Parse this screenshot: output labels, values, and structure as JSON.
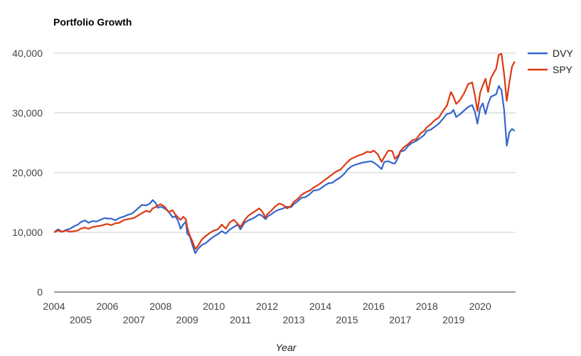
{
  "chart_data": {
    "type": "line",
    "title": "Portfolio Growth",
    "xlabel": "Year",
    "ylabel": "",
    "xlim": [
      2004.0,
      2020.5
    ],
    "ylim": [
      0,
      42000
    ],
    "grid": true,
    "legend_position": "right",
    "y_ticks": [
      {
        "value": 0,
        "label": "0"
      },
      {
        "value": 10000,
        "label": "10,000"
      },
      {
        "value": 20000,
        "label": "20,000"
      },
      {
        "value": 30000,
        "label": "30,000"
      },
      {
        "value": 40000,
        "label": "40,000"
      }
    ],
    "x_ticks": [
      {
        "value": 2004,
        "label": "2004",
        "row": 1
      },
      {
        "value": 2005,
        "label": "2005",
        "row": 2
      },
      {
        "value": 2006,
        "label": "2006",
        "row": 1
      },
      {
        "value": 2007,
        "label": "2007",
        "row": 2
      },
      {
        "value": 2008,
        "label": "2008",
        "row": 1
      },
      {
        "value": 2009,
        "label": "2009",
        "row": 2
      },
      {
        "value": 2010,
        "label": "2010",
        "row": 1
      },
      {
        "value": 2011,
        "label": "2011",
        "row": 2
      },
      {
        "value": 2012,
        "label": "2012",
        "row": 1
      },
      {
        "value": 2013,
        "label": "2013",
        "row": 2
      },
      {
        "value": 2014,
        "label": "2014",
        "row": 1
      },
      {
        "value": 2015,
        "label": "2015",
        "row": 2
      },
      {
        "value": 2016,
        "label": "2016",
        "row": 1
      },
      {
        "value": 2017,
        "label": "2017",
        "row": 2
      },
      {
        "value": 2018,
        "label": "2018",
        "row": 1
      },
      {
        "value": 2019,
        "label": "2019",
        "row": 2
      },
      {
        "value": 2020,
        "label": "2020",
        "row": 1
      }
    ],
    "series": [
      {
        "name": "DVY",
        "color": "#3366cc",
        "points": [
          [
            2004.0,
            10000
          ],
          [
            2004.15,
            10500
          ],
          [
            2004.3,
            10100
          ],
          [
            2004.45,
            10400
          ],
          [
            2004.6,
            10600
          ],
          [
            2004.75,
            11000
          ],
          [
            2004.9,
            11300
          ],
          [
            2005.0,
            11700
          ],
          [
            2005.15,
            12000
          ],
          [
            2005.3,
            11600
          ],
          [
            2005.45,
            11900
          ],
          [
            2005.6,
            11800
          ],
          [
            2005.75,
            12100
          ],
          [
            2005.9,
            12400
          ],
          [
            2006.0,
            12300
          ],
          [
            2006.15,
            12300
          ],
          [
            2006.3,
            12000
          ],
          [
            2006.45,
            12400
          ],
          [
            2006.6,
            12600
          ],
          [
            2006.75,
            12900
          ],
          [
            2006.9,
            13100
          ],
          [
            2007.0,
            13400
          ],
          [
            2007.15,
            14000
          ],
          [
            2007.3,
            14600
          ],
          [
            2007.45,
            14500
          ],
          [
            2007.6,
            14800
          ],
          [
            2007.7,
            15400
          ],
          [
            2007.8,
            15000
          ],
          [
            2007.9,
            14100
          ],
          [
            2008.0,
            14300
          ],
          [
            2008.15,
            14000
          ],
          [
            2008.3,
            13500
          ],
          [
            2008.45,
            12500
          ],
          [
            2008.55,
            12700
          ],
          [
            2008.65,
            12000
          ],
          [
            2008.75,
            10600
          ],
          [
            2008.85,
            11300
          ],
          [
            2008.95,
            11800
          ],
          [
            2009.0,
            9800
          ],
          [
            2009.1,
            9300
          ],
          [
            2009.2,
            7800
          ],
          [
            2009.3,
            6500
          ],
          [
            2009.4,
            7200
          ],
          [
            2009.55,
            7900
          ],
          [
            2009.7,
            8200
          ],
          [
            2009.85,
            8800
          ],
          [
            2010.0,
            9300
          ],
          [
            2010.15,
            9700
          ],
          [
            2010.3,
            10200
          ],
          [
            2010.45,
            9800
          ],
          [
            2010.6,
            10500
          ],
          [
            2010.75,
            10900
          ],
          [
            2010.9,
            11300
          ],
          [
            2011.0,
            10500
          ],
          [
            2011.15,
            11600
          ],
          [
            2011.3,
            12000
          ],
          [
            2011.5,
            12400
          ],
          [
            2011.7,
            13000
          ],
          [
            2011.8,
            12800
          ],
          [
            2011.95,
            12200
          ],
          [
            2012.0,
            12600
          ],
          [
            2012.15,
            13000
          ],
          [
            2012.3,
            13500
          ],
          [
            2012.45,
            13800
          ],
          [
            2012.6,
            14000
          ],
          [
            2012.75,
            14300
          ],
          [
            2012.9,
            14200
          ],
          [
            2013.0,
            14700
          ],
          [
            2013.15,
            15200
          ],
          [
            2013.3,
            15800
          ],
          [
            2013.45,
            15900
          ],
          [
            2013.6,
            16400
          ],
          [
            2013.75,
            17000
          ],
          [
            2013.9,
            17100
          ],
          [
            2014.0,
            17300
          ],
          [
            2014.15,
            17800
          ],
          [
            2014.3,
            18200
          ],
          [
            2014.45,
            18300
          ],
          [
            2014.6,
            18800
          ],
          [
            2014.75,
            19200
          ],
          [
            2014.9,
            19800
          ],
          [
            2015.0,
            20400
          ],
          [
            2015.15,
            21000
          ],
          [
            2015.3,
            21300
          ],
          [
            2015.45,
            21500
          ],
          [
            2015.6,
            21700
          ],
          [
            2015.75,
            21800
          ],
          [
            2015.9,
            21900
          ],
          [
            2016.0,
            21700
          ],
          [
            2016.15,
            21200
          ],
          [
            2016.3,
            20600
          ],
          [
            2016.4,
            21800
          ],
          [
            2016.55,
            21900
          ],
          [
            2016.7,
            21600
          ],
          [
            2016.8,
            21500
          ],
          [
            2016.95,
            22800
          ],
          [
            2017.0,
            23500
          ],
          [
            2017.15,
            23700
          ],
          [
            2017.3,
            24500
          ],
          [
            2017.45,
            25000
          ],
          [
            2017.6,
            25300
          ],
          [
            2017.75,
            25800
          ],
          [
            2017.9,
            26300
          ],
          [
            2018.0,
            27000
          ],
          [
            2018.15,
            27200
          ],
          [
            2018.3,
            27700
          ],
          [
            2018.45,
            28200
          ],
          [
            2018.6,
            29000
          ],
          [
            2018.75,
            29800
          ],
          [
            2018.9,
            30000
          ],
          [
            2019.0,
            30500
          ],
          [
            2019.1,
            29300
          ],
          [
            2019.25,
            29800
          ],
          [
            2019.4,
            30400
          ],
          [
            2019.55,
            31000
          ],
          [
            2019.7,
            31300
          ],
          [
            2019.8,
            30200
          ],
          [
            2019.9,
            28200
          ],
          [
            2020.0,
            30800
          ],
          [
            2020.1,
            31600
          ],
          [
            2020.2,
            29800
          ],
          [
            2020.3,
            31500
          ],
          [
            2020.4,
            32700
          ],
          [
            2020.5,
            32900
          ],
          [
            2020.6,
            33100
          ],
          [
            2020.7,
            34500
          ],
          [
            2020.8,
            33800
          ],
          [
            2020.9,
            30500
          ],
          [
            2021.0,
            24500
          ],
          [
            2021.1,
            26800
          ],
          [
            2021.2,
            27300
          ],
          [
            2021.3,
            27000
          ]
        ]
      },
      {
        "name": "SPY",
        "color": "#dc3912",
        "points": [
          [
            2004.0,
            10000
          ],
          [
            2004.15,
            10300
          ],
          [
            2004.3,
            10100
          ],
          [
            2004.45,
            10300
          ],
          [
            2004.6,
            10100
          ],
          [
            2004.75,
            10200
          ],
          [
            2004.9,
            10300
          ],
          [
            2005.0,
            10600
          ],
          [
            2005.15,
            10800
          ],
          [
            2005.3,
            10600
          ],
          [
            2005.45,
            10900
          ],
          [
            2005.6,
            11000
          ],
          [
            2005.75,
            11100
          ],
          [
            2005.9,
            11300
          ],
          [
            2006.0,
            11400
          ],
          [
            2006.15,
            11200
          ],
          [
            2006.3,
            11500
          ],
          [
            2006.45,
            11600
          ],
          [
            2006.6,
            12000
          ],
          [
            2006.75,
            12200
          ],
          [
            2006.9,
            12300
          ],
          [
            2007.0,
            12400
          ],
          [
            2007.15,
            12800
          ],
          [
            2007.3,
            13200
          ],
          [
            2007.45,
            13600
          ],
          [
            2007.6,
            13400
          ],
          [
            2007.7,
            14000
          ],
          [
            2007.8,
            14200
          ],
          [
            2007.9,
            14500
          ],
          [
            2008.0,
            14700
          ],
          [
            2008.15,
            14300
          ],
          [
            2008.3,
            13400
          ],
          [
            2008.45,
            13700
          ],
          [
            2008.55,
            13000
          ],
          [
            2008.65,
            12500
          ],
          [
            2008.75,
            12100
          ],
          [
            2008.85,
            12600
          ],
          [
            2008.95,
            12200
          ],
          [
            2009.0,
            10900
          ],
          [
            2009.1,
            9400
          ],
          [
            2009.2,
            8500
          ],
          [
            2009.3,
            7200
          ],
          [
            2009.4,
            7700
          ],
          [
            2009.55,
            8800
          ],
          [
            2009.7,
            9400
          ],
          [
            2009.85,
            9900
          ],
          [
            2010.0,
            10300
          ],
          [
            2010.15,
            10500
          ],
          [
            2010.3,
            11300
          ],
          [
            2010.45,
            10600
          ],
          [
            2010.6,
            11700
          ],
          [
            2010.75,
            12100
          ],
          [
            2010.9,
            11400
          ],
          [
            2011.0,
            10900
          ],
          [
            2011.15,
            12000
          ],
          [
            2011.3,
            12800
          ],
          [
            2011.5,
            13400
          ],
          [
            2011.7,
            14000
          ],
          [
            2011.8,
            13600
          ],
          [
            2011.95,
            12400
          ],
          [
            2012.0,
            13000
          ],
          [
            2012.15,
            13600
          ],
          [
            2012.3,
            14300
          ],
          [
            2012.45,
            14800
          ],
          [
            2012.6,
            14600
          ],
          [
            2012.75,
            14000
          ],
          [
            2012.9,
            14400
          ],
          [
            2013.0,
            15100
          ],
          [
            2013.15,
            15600
          ],
          [
            2013.3,
            16300
          ],
          [
            2013.45,
            16700
          ],
          [
            2013.6,
            17000
          ],
          [
            2013.75,
            17500
          ],
          [
            2013.9,
            17900
          ],
          [
            2014.0,
            18200
          ],
          [
            2014.15,
            18700
          ],
          [
            2014.3,
            19200
          ],
          [
            2014.45,
            19700
          ],
          [
            2014.6,
            20200
          ],
          [
            2014.75,
            20500
          ],
          [
            2014.9,
            21200
          ],
          [
            2015.0,
            21700
          ],
          [
            2015.15,
            22300
          ],
          [
            2015.3,
            22600
          ],
          [
            2015.45,
            22900
          ],
          [
            2015.6,
            23100
          ],
          [
            2015.75,
            23500
          ],
          [
            2015.9,
            23400
          ],
          [
            2016.0,
            23700
          ],
          [
            2016.15,
            23100
          ],
          [
            2016.3,
            21800
          ],
          [
            2016.4,
            22600
          ],
          [
            2016.55,
            23700
          ],
          [
            2016.7,
            23600
          ],
          [
            2016.8,
            22300
          ],
          [
            2016.95,
            23000
          ],
          [
            2017.0,
            23600
          ],
          [
            2017.15,
            24300
          ],
          [
            2017.3,
            24800
          ],
          [
            2017.45,
            25400
          ],
          [
            2017.6,
            25600
          ],
          [
            2017.75,
            26500
          ],
          [
            2017.9,
            27000
          ],
          [
            2018.0,
            27600
          ],
          [
            2018.15,
            28100
          ],
          [
            2018.3,
            28800
          ],
          [
            2018.45,
            29200
          ],
          [
            2018.6,
            30300
          ],
          [
            2018.75,
            31200
          ],
          [
            2018.9,
            33500
          ],
          [
            2019.0,
            32700
          ],
          [
            2019.1,
            31500
          ],
          [
            2019.25,
            32200
          ],
          [
            2019.4,
            33300
          ],
          [
            2019.55,
            34800
          ],
          [
            2019.7,
            35100
          ],
          [
            2019.8,
            33000
          ],
          [
            2019.9,
            30300
          ],
          [
            2020.0,
            33400
          ],
          [
            2020.1,
            34600
          ],
          [
            2020.2,
            35700
          ],
          [
            2020.3,
            33500
          ],
          [
            2020.4,
            35800
          ],
          [
            2020.5,
            36600
          ],
          [
            2020.6,
            37400
          ],
          [
            2020.7,
            39700
          ],
          [
            2020.8,
            39900
          ],
          [
            2020.9,
            36500
          ],
          [
            2021.0,
            32000
          ],
          [
            2021.1,
            35200
          ],
          [
            2021.2,
            37800
          ],
          [
            2021.3,
            38600
          ]
        ]
      }
    ]
  }
}
